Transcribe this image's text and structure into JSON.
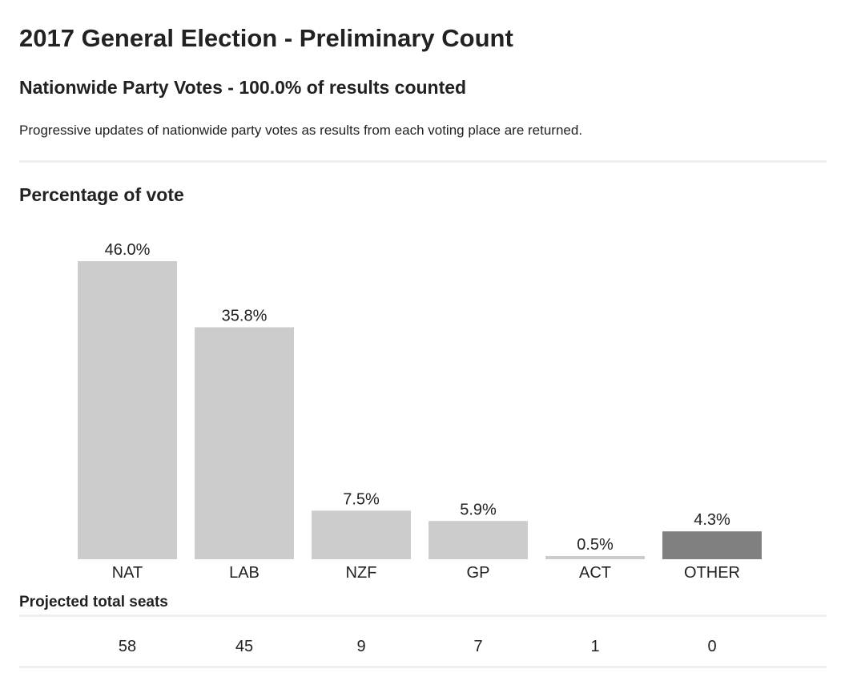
{
  "header": {
    "title": "2017 General Election - Preliminary Count",
    "subtitle": "Nationwide Party Votes - 100.0% of results counted",
    "description": "Progressive updates of nationwide party votes as results from each voting place are returned."
  },
  "chart_section": {
    "title": "Percentage of vote"
  },
  "chart_data": {
    "type": "bar",
    "title": "Percentage of vote",
    "categories": [
      "NAT",
      "LAB",
      "NZF",
      "GP",
      "ACT",
      "OTHER"
    ],
    "values": [
      46.0,
      35.8,
      7.5,
      5.9,
      0.5,
      4.3
    ],
    "value_labels": [
      "46.0%",
      "35.8%",
      "7.5%",
      "5.9%",
      "0.5%",
      "4.3%"
    ],
    "ylim": [
      0,
      46.0
    ],
    "grid": false,
    "colors": {
      "default": "#cccccc",
      "OTHER": "#808080"
    }
  },
  "seats": {
    "label": "Projected total seats",
    "values": [
      "58",
      "45",
      "9",
      "7",
      "1",
      "0"
    ]
  }
}
